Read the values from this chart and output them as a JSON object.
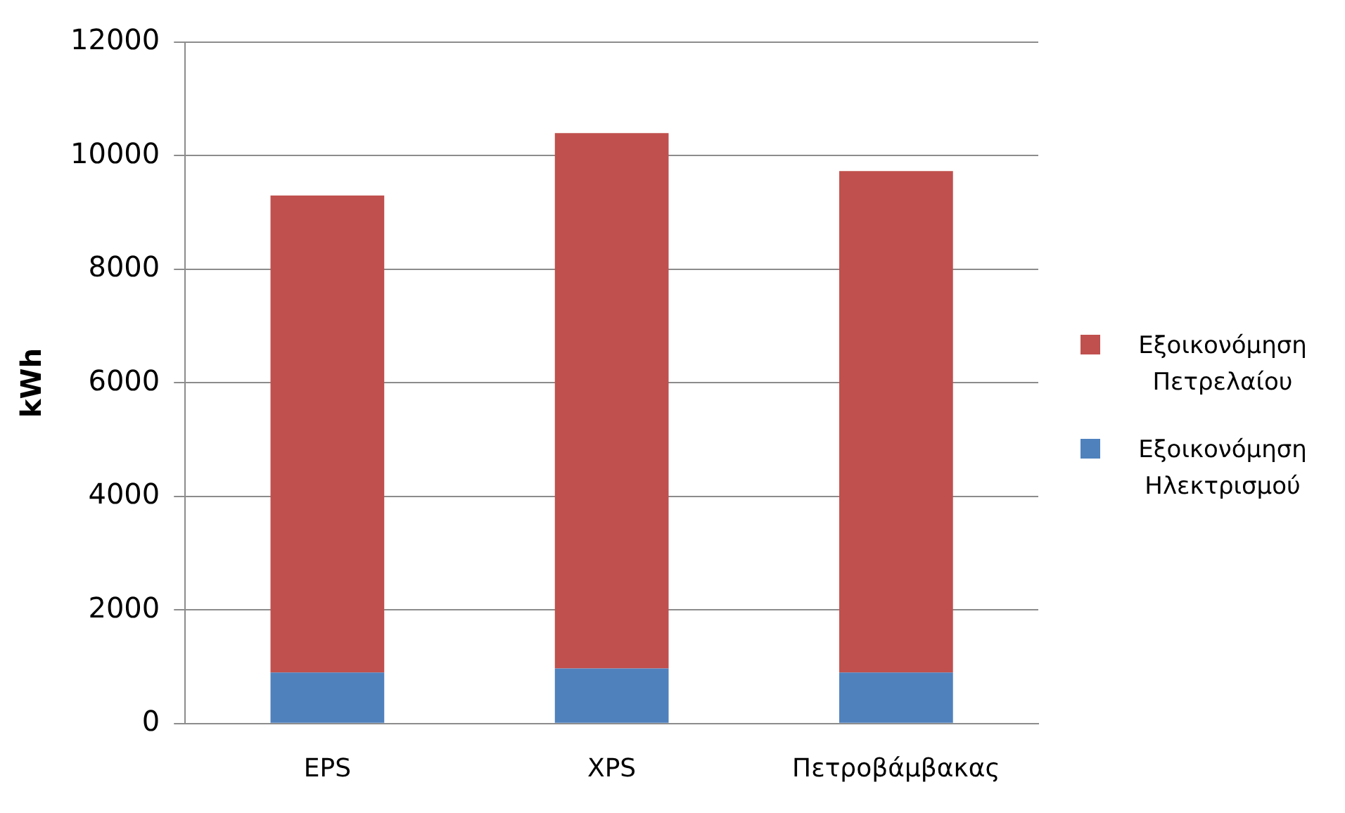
{
  "chart_data": {
    "type": "bar",
    "stacked": true,
    "ylabel": "kWh",
    "categories": [
      "EPS",
      "XPS",
      "Πετροβάμβακας"
    ],
    "series": [
      {
        "name": "Εξοικονόμηση Ηλεκτρισμού",
        "color": "#4f81bd",
        "values": [
          900,
          970,
          900
        ]
      },
      {
        "name": "Εξοικονόμηση Πετρελαίου",
        "color": "#c0504d",
        "values": [
          8400,
          9430,
          8830
        ]
      }
    ],
    "ylim": [
      0,
      12000
    ],
    "yticks": [
      0,
      2000,
      4000,
      6000,
      8000,
      10000,
      12000
    ],
    "grid": "y",
    "legend": "right"
  }
}
